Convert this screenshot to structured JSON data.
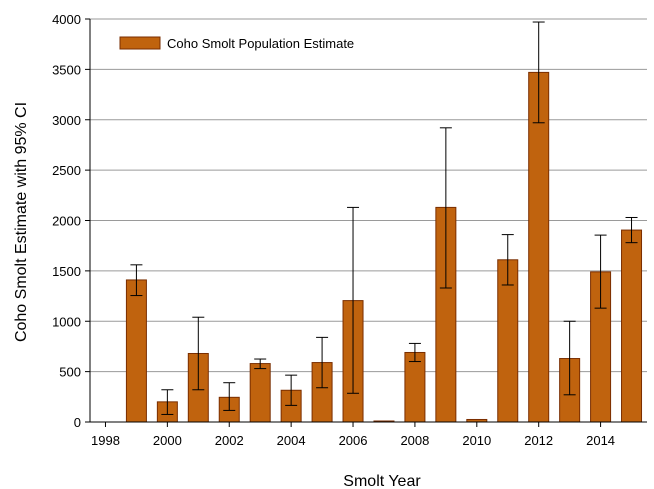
{
  "chart_data": {
    "type": "bar",
    "xlabel": "Smolt Year",
    "ylabel": "Coho Smolt Estimate with 95% CI",
    "ylim": [
      0,
      4000
    ],
    "xlim": [
      1997.5,
      2015.5
    ],
    "y_ticks": [
      0,
      500,
      1000,
      1500,
      2000,
      2500,
      3000,
      3500,
      4000
    ],
    "x_ticks": [
      1998,
      2000,
      2002,
      2004,
      2006,
      2008,
      2010,
      2012,
      2014
    ],
    "grid": "horizontal",
    "legend_position": "top-left",
    "bar_color": "#C0630E",
    "bar_edge_color": "#7A2E00",
    "series": [
      {
        "name": "Coho Smolt Population Estimate",
        "x": [
          1999,
          2000,
          2001,
          2002,
          2003,
          2004,
          2005,
          2006,
          2007,
          2008,
          2009,
          2010,
          2011,
          2012,
          2013,
          2014,
          2015
        ],
        "values": [
          1410,
          200,
          680,
          245,
          580,
          315,
          590,
          1205,
          10,
          690,
          2130,
          25,
          1610,
          3470,
          630,
          1490,
          1905
        ],
        "ci_low": [
          1255,
          75,
          320,
          115,
          530,
          165,
          340,
          285,
          null,
          600,
          1330,
          null,
          1360,
          2970,
          270,
          1130,
          1780
        ],
        "ci_high": [
          1560,
          320,
          1040,
          390,
          625,
          465,
          840,
          2130,
          null,
          780,
          2920,
          null,
          1860,
          3970,
          1000,
          1855,
          2030
        ]
      }
    ]
  }
}
